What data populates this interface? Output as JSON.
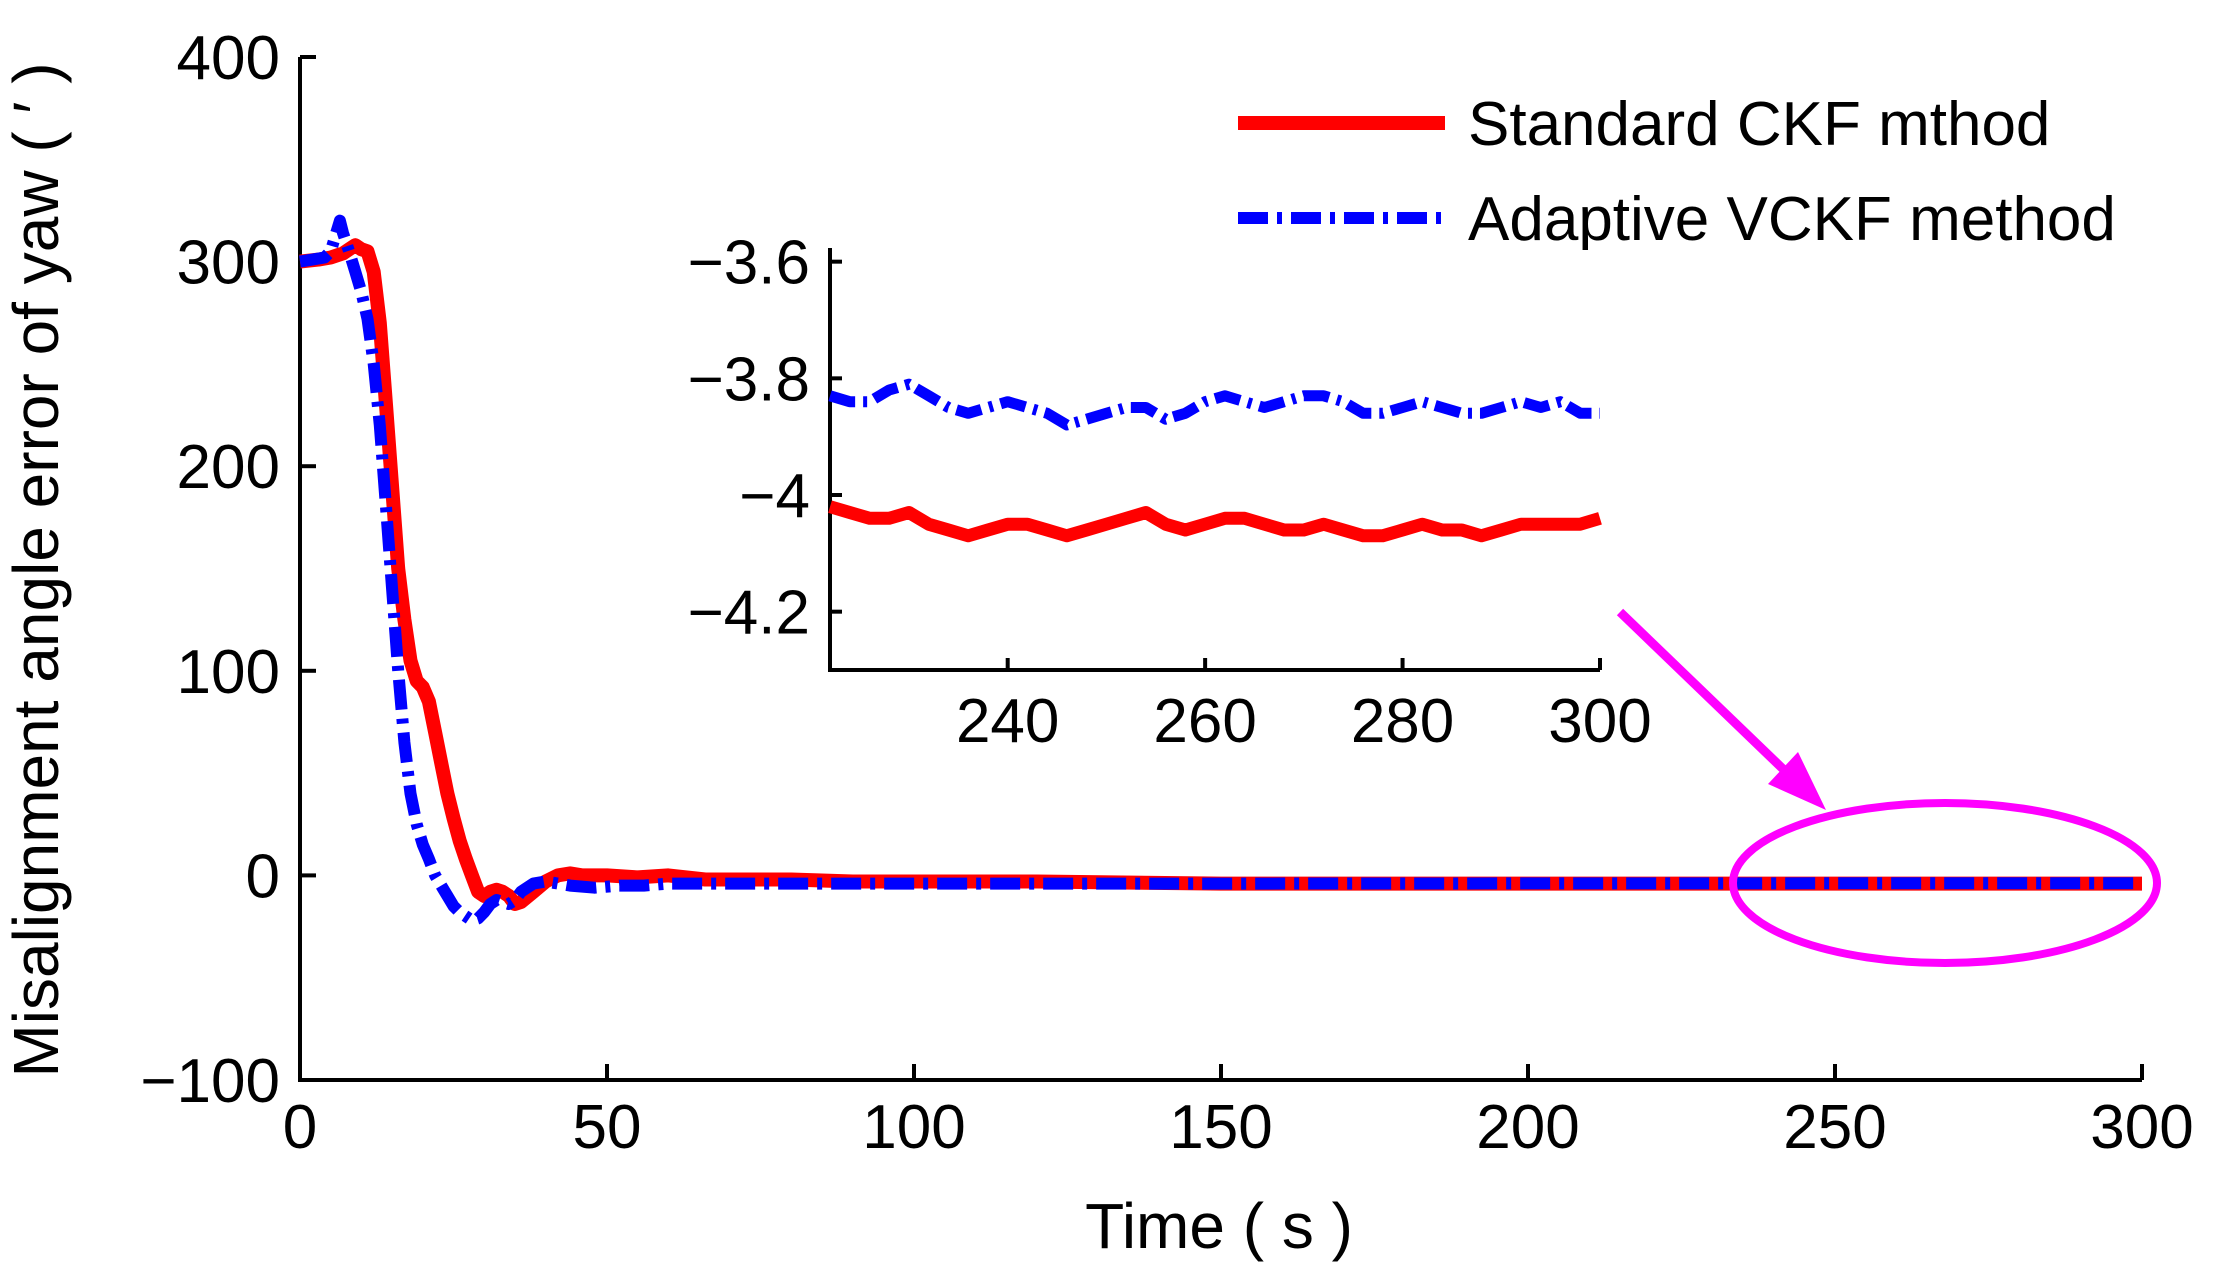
{
  "chart_data": {
    "type": "line",
    "xlabel": "Time ( s )",
    "ylabel": "Misalignment angle error of yaw ( ′ )",
    "xlim": [
      0,
      300
    ],
    "ylim": [
      -100,
      400
    ],
    "xticks": [
      0,
      50,
      100,
      150,
      200,
      250,
      300
    ],
    "yticks": [
      -100,
      0,
      100,
      200,
      300,
      400
    ],
    "xtick_labels": [
      "0",
      "50",
      "100",
      "150",
      "200",
      "250",
      "300"
    ],
    "ytick_labels": [
      "−100",
      "0",
      "100",
      "200",
      "300",
      "400"
    ],
    "legend_position": "top-right",
    "series": [
      {
        "name": "Standard CKF mthod",
        "color": "#ff0000",
        "style": "solid",
        "points": [
          [
            0,
            300
          ],
          [
            3,
            301
          ],
          [
            5,
            302
          ],
          [
            7,
            304
          ],
          [
            8,
            306
          ],
          [
            9,
            308
          ],
          [
            10,
            306
          ],
          [
            11,
            305
          ],
          [
            12,
            295
          ],
          [
            13,
            270
          ],
          [
            14,
            230
          ],
          [
            15,
            190
          ],
          [
            16,
            150
          ],
          [
            17,
            125
          ],
          [
            18,
            105
          ],
          [
            19,
            95
          ],
          [
            20,
            92
          ],
          [
            21,
            85
          ],
          [
            22,
            70
          ],
          [
            23,
            55
          ],
          [
            24,
            40
          ],
          [
            25,
            28
          ],
          [
            26,
            17
          ],
          [
            27,
            8
          ],
          [
            28,
            0
          ],
          [
            29,
            -8
          ],
          [
            30,
            -10
          ],
          [
            31,
            -8
          ],
          [
            32,
            -7
          ],
          [
            33,
            -8
          ],
          [
            34,
            -10
          ],
          [
            35,
            -14
          ],
          [
            36,
            -13
          ],
          [
            38,
            -8
          ],
          [
            40,
            -3
          ],
          [
            42,
            0
          ],
          [
            44,
            1
          ],
          [
            46,
            0
          ],
          [
            50,
            0
          ],
          [
            55,
            -1
          ],
          [
            60,
            0
          ],
          [
            63,
            -1
          ],
          [
            66,
            -2
          ],
          [
            70,
            -2
          ],
          [
            80,
            -2
          ],
          [
            90,
            -3
          ],
          [
            100,
            -3
          ],
          [
            120,
            -3
          ],
          [
            150,
            -4
          ],
          [
            200,
            -4
          ],
          [
            250,
            -4
          ],
          [
            300,
            -4
          ]
        ]
      },
      {
        "name": "Adaptive VCKF method",
        "color": "#0000ff",
        "style": "dashdot",
        "points": [
          [
            0,
            300
          ],
          [
            2,
            301
          ],
          [
            4,
            302
          ],
          [
            5,
            305
          ],
          [
            6,
            315
          ],
          [
            6.5,
            320
          ],
          [
            7,
            314
          ],
          [
            8,
            305
          ],
          [
            9,
            295
          ],
          [
            10,
            285
          ],
          [
            11,
            272
          ],
          [
            12,
            250
          ],
          [
            13,
            220
          ],
          [
            14,
            180
          ],
          [
            15,
            140
          ],
          [
            16,
            100
          ],
          [
            17,
            65
          ],
          [
            18,
            40
          ],
          [
            19,
            25
          ],
          [
            20,
            15
          ],
          [
            21,
            8
          ],
          [
            22,
            0
          ],
          [
            23,
            -5
          ],
          [
            24,
            -10
          ],
          [
            25,
            -15
          ],
          [
            26,
            -18
          ],
          [
            27,
            -20
          ],
          [
            28,
            -22
          ],
          [
            29,
            -21
          ],
          [
            30,
            -18
          ],
          [
            31,
            -14
          ],
          [
            32,
            -12
          ],
          [
            33,
            -13
          ],
          [
            34,
            -14
          ],
          [
            35,
            -12
          ],
          [
            36,
            -8
          ],
          [
            38,
            -4
          ],
          [
            40,
            -3
          ],
          [
            44,
            -5
          ],
          [
            48,
            -6
          ],
          [
            52,
            -5
          ],
          [
            56,
            -5
          ],
          [
            60,
            -4
          ],
          [
            70,
            -4
          ],
          [
            80,
            -4
          ],
          [
            100,
            -4
          ],
          [
            150,
            -4
          ],
          [
            200,
            -3.9
          ],
          [
            250,
            -3.85
          ],
          [
            300,
            -3.85
          ]
        ]
      }
    ],
    "inset": {
      "xlim": [
        222,
        300
      ],
      "ylim": [
        -4.3,
        -3.58
      ],
      "xticks": [
        240,
        260,
        280,
        300
      ],
      "yticks": [
        -4.2,
        -4.0,
        -3.8,
        -3.6
      ],
      "xtick_labels": [
        "240",
        "260",
        "280",
        "300"
      ],
      "ytick_labels": [
        "−4.2",
        "−4",
        "−3.8",
        "−3.6"
      ],
      "series": [
        {
          "name": "Standard CKF mthod",
          "color": "#ff0000",
          "style": "solid",
          "points": [
            [
              222,
              -4.02
            ],
            [
              224,
              -4.03
            ],
            [
              226,
              -4.04
            ],
            [
              228,
              -4.04
            ],
            [
              230,
              -4.03
            ],
            [
              232,
              -4.05
            ],
            [
              234,
              -4.06
            ],
            [
              236,
              -4.07
            ],
            [
              238,
              -4.06
            ],
            [
              240,
              -4.05
            ],
            [
              242,
              -4.05
            ],
            [
              244,
              -4.06
            ],
            [
              246,
              -4.07
            ],
            [
              248,
              -4.06
            ],
            [
              250,
              -4.05
            ],
            [
              252,
              -4.04
            ],
            [
              254,
              -4.03
            ],
            [
              256,
              -4.05
            ],
            [
              258,
              -4.06
            ],
            [
              260,
              -4.05
            ],
            [
              262,
              -4.04
            ],
            [
              264,
              -4.04
            ],
            [
              266,
              -4.05
            ],
            [
              268,
              -4.06
            ],
            [
              270,
              -4.06
            ],
            [
              272,
              -4.05
            ],
            [
              274,
              -4.06
            ],
            [
              276,
              -4.07
            ],
            [
              278,
              -4.07
            ],
            [
              280,
              -4.06
            ],
            [
              282,
              -4.05
            ],
            [
              284,
              -4.06
            ],
            [
              286,
              -4.06
            ],
            [
              288,
              -4.07
            ],
            [
              290,
              -4.06
            ],
            [
              292,
              -4.05
            ],
            [
              294,
              -4.05
            ],
            [
              296,
              -4.05
            ],
            [
              298,
              -4.05
            ],
            [
              300,
              -4.04
            ]
          ]
        },
        {
          "name": "Adaptive VCKF method",
          "color": "#0000ff",
          "style": "dashdot",
          "points": [
            [
              222,
              -3.83
            ],
            [
              224,
              -3.84
            ],
            [
              226,
              -3.84
            ],
            [
              228,
              -3.82
            ],
            [
              230,
              -3.81
            ],
            [
              232,
              -3.83
            ],
            [
              234,
              -3.85
            ],
            [
              236,
              -3.86
            ],
            [
              238,
              -3.85
            ],
            [
              240,
              -3.84
            ],
            [
              242,
              -3.85
            ],
            [
              244,
              -3.86
            ],
            [
              246,
              -3.88
            ],
            [
              248,
              -3.87
            ],
            [
              250,
              -3.86
            ],
            [
              252,
              -3.85
            ],
            [
              254,
              -3.85
            ],
            [
              256,
              -3.87
            ],
            [
              258,
              -3.86
            ],
            [
              260,
              -3.84
            ],
            [
              262,
              -3.83
            ],
            [
              264,
              -3.84
            ],
            [
              266,
              -3.85
            ],
            [
              268,
              -3.84
            ],
            [
              270,
              -3.83
            ],
            [
              272,
              -3.83
            ],
            [
              274,
              -3.84
            ],
            [
              276,
              -3.86
            ],
            [
              278,
              -3.86
            ],
            [
              280,
              -3.85
            ],
            [
              282,
              -3.84
            ],
            [
              284,
              -3.85
            ],
            [
              286,
              -3.86
            ],
            [
              288,
              -3.86
            ],
            [
              290,
              -3.85
            ],
            [
              292,
              -3.84
            ],
            [
              294,
              -3.85
            ],
            [
              296,
              -3.84
            ],
            [
              298,
              -3.86
            ],
            [
              300,
              -3.86
            ]
          ]
        }
      ]
    },
    "annotation": {
      "highlight_x_range": [
        233,
        300
      ],
      "highlight_y": -4,
      "arrow_color": "#ff00ff"
    }
  }
}
